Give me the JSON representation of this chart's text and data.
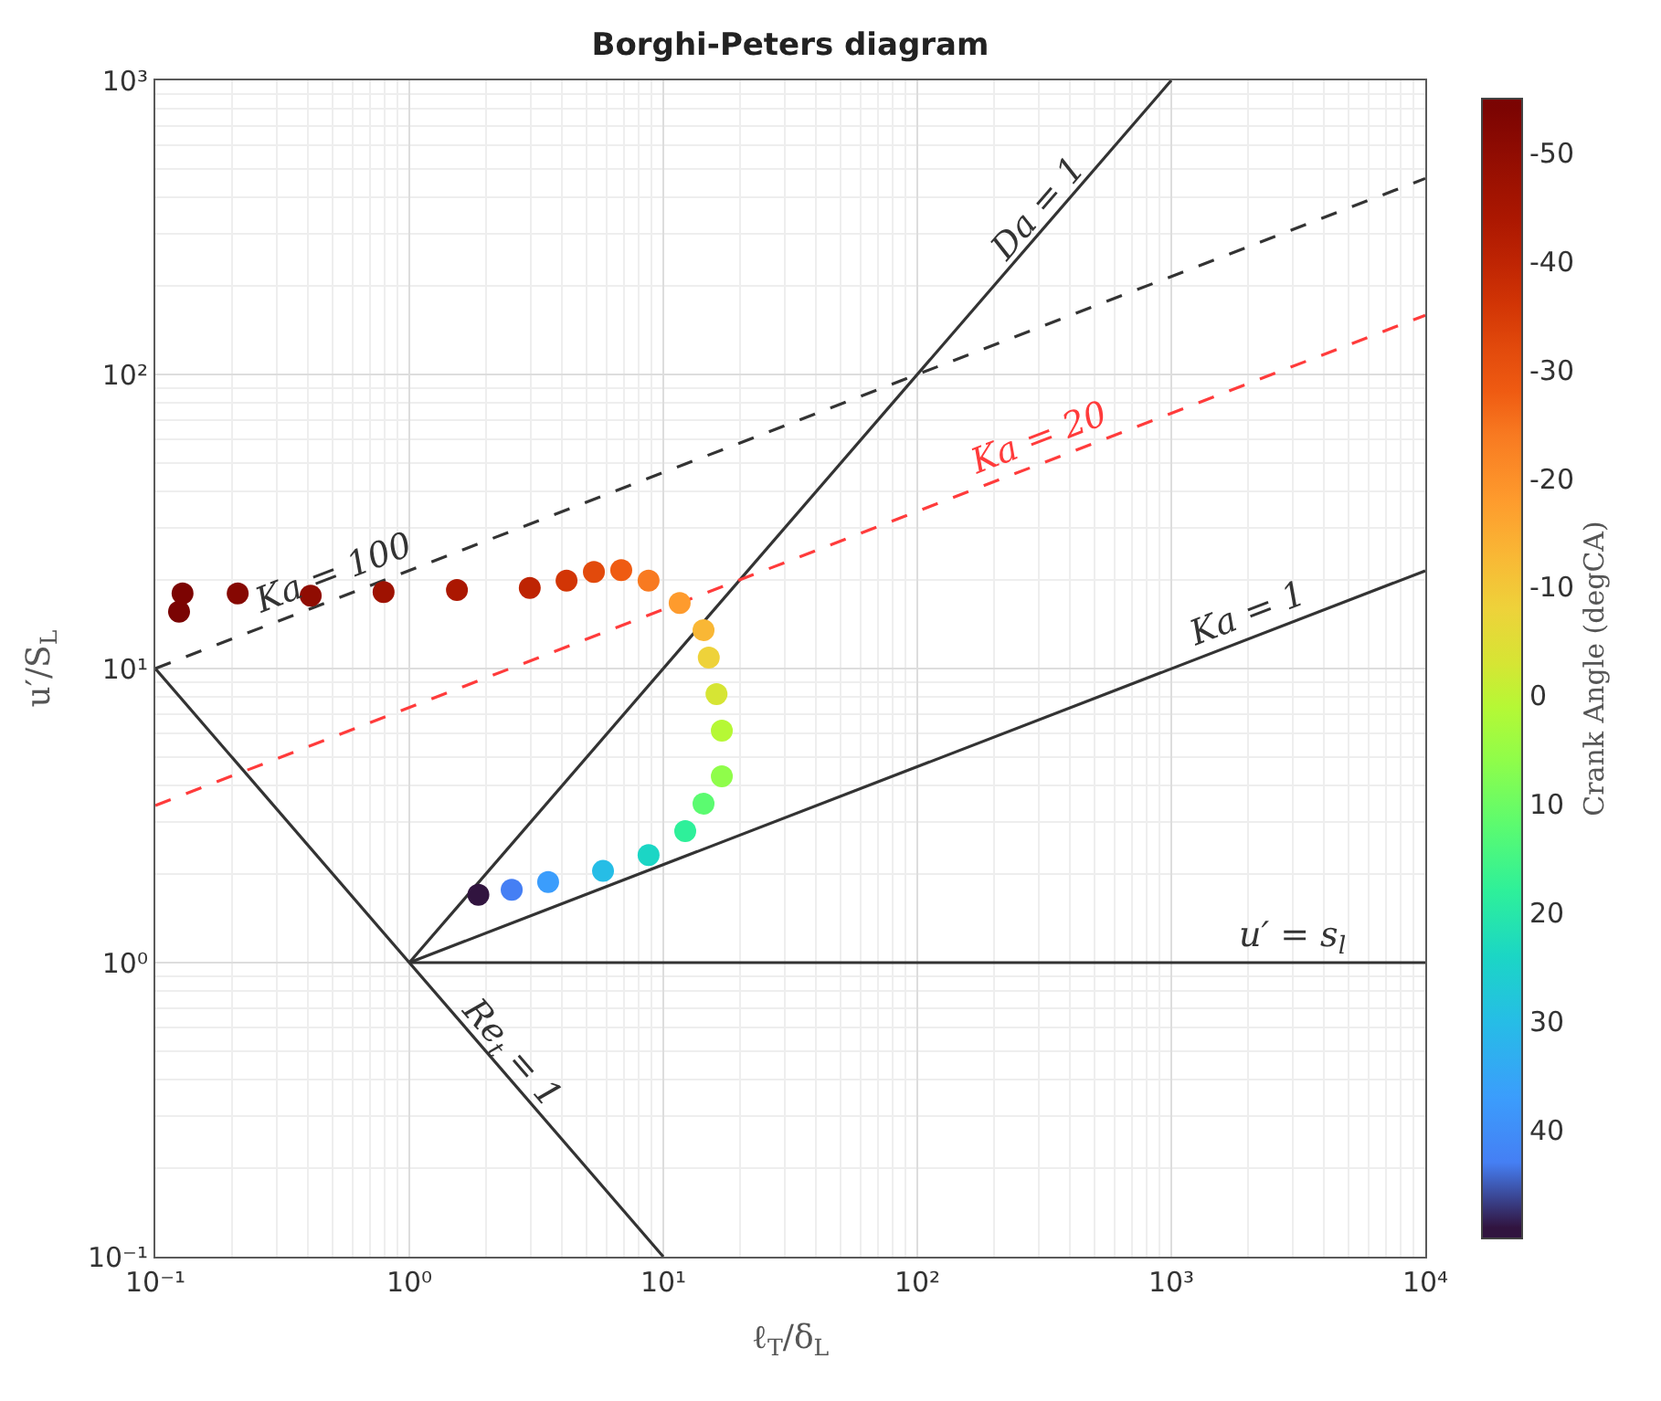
{
  "chart_data": {
    "type": "line",
    "title": "Borghi-Peters diagram",
    "xlabel": "ℓ$_{T}$/δ$_{L}$",
    "ylabel": "u′/S$_{L}$",
    "clabel": "Crank Angle (degCA)",
    "log": "xy",
    "grid": true,
    "xlim": [
      0.1,
      10000
    ],
    "ylim": [
      0.1,
      1000
    ],
    "xticks": [
      {
        "value": 0.1,
        "label": "10⁻¹"
      },
      {
        "value": 1,
        "label": "10⁰"
      },
      {
        "value": 10,
        "label": "10¹"
      },
      {
        "value": 100,
        "label": "10²"
      },
      {
        "value": 1000,
        "label": "10³"
      },
      {
        "value": 10000,
        "label": "10⁴"
      }
    ],
    "yticks": [
      {
        "value": 0.1,
        "label": "10⁻¹"
      },
      {
        "value": 1,
        "label": "10⁰"
      },
      {
        "value": 10,
        "label": "10¹"
      },
      {
        "value": 100,
        "label": "10²"
      },
      {
        "value": 1000,
        "label": "10³"
      }
    ],
    "clim": [
      50,
      -55
    ],
    "cticks": [
      40,
      30,
      20,
      10,
      0,
      -10,
      -20,
      -30,
      -40,
      -50
    ],
    "series": [
      {
        "color": "#333333",
        "line_style": "solid",
        "marker": "none",
        "x": [
          1,
          1000
        ],
        "values": [
          1,
          1000
        ]
      },
      {
        "color": "#333333",
        "line_style": "solid",
        "marker": "none",
        "x": [
          0.1,
          10
        ],
        "values": [
          10,
          0.1
        ]
      },
      {
        "color": "#333333",
        "line_style": "solid",
        "marker": "none",
        "x": [
          1,
          10000
        ],
        "values": [
          1,
          21.5
        ]
      },
      {
        "color": "#333333",
        "line_style": "solid",
        "marker": "none",
        "x": [
          1,
          10000
        ],
        "values": [
          1,
          1
        ]
      },
      {
        "color": "#333333",
        "line_style": "dashed",
        "marker": "none",
        "x": [
          0.1,
          10000
        ],
        "values": [
          10,
          464
        ]
      },
      {
        "color": "#ff3b3b",
        "line_style": "dashed",
        "marker": "none",
        "x": [
          0.1,
          10000
        ],
        "values": [
          3.42,
          159
        ]
      },
      {
        "type": "scatter",
        "marker": "circle",
        "colors": [
          "#7a0403",
          "#7c0402",
          "#860802",
          "#900c02",
          "#9e1201",
          "#ab1701",
          "#be2403",
          "#d23505",
          "#e24a0c",
          "#ef5b12",
          "#f87a21",
          "#fe9b2d",
          "#f9b735",
          "#eed23a",
          "#d6e534",
          "#b6f835",
          "#8ffd4a",
          "#5bfb70",
          "#2ef09a",
          "#1bd6c5",
          "#26bde6",
          "#3b9dfc",
          "#457ff4",
          "#31143f"
        ],
        "x": [
          0.124,
          0.128,
          0.211,
          0.409,
          0.792,
          1.54,
          2.98,
          4.16,
          5.33,
          6.83,
          8.75,
          11.6,
          14.4,
          15.1,
          16.2,
          17.0,
          17.0,
          14.4,
          12.2,
          8.75,
          5.79,
          3.52,
          2.53,
          1.87
        ],
        "values": [
          15.6,
          18.0,
          18.0,
          17.7,
          18.2,
          18.5,
          18.8,
          19.9,
          21.3,
          21.6,
          19.9,
          16.7,
          13.5,
          10.9,
          8.19,
          6.15,
          4.3,
          3.47,
          2.8,
          2.32,
          2.05,
          1.88,
          1.77,
          1.7
        ],
        "cvalues": [
          -55,
          -54,
          -52,
          -50,
          -47,
          -44,
          -40,
          -36,
          -32,
          -28,
          -24,
          -18,
          -13,
          -8,
          -3,
          1,
          6,
          12,
          18,
          24,
          30,
          37,
          43,
          49
        ]
      }
    ],
    "annotations": [
      {
        "text": "Da = 1",
        "x": 300,
        "y": 300
      },
      {
        "text": "Re$_{t}$ = 1",
        "x": 2.5,
        "y": 0.4
      },
      {
        "text": "Ka = 1",
        "x": 2000,
        "y": 12.6
      },
      {
        "text": "u′ = s$_{l}$",
        "x": 3000,
        "y": 1
      },
      {
        "text": "Ka = 100",
        "x": 0.5,
        "y": 17.1
      },
      {
        "text": "Ka = 20",
        "x": 300,
        "y": 49.3
      }
    ]
  }
}
